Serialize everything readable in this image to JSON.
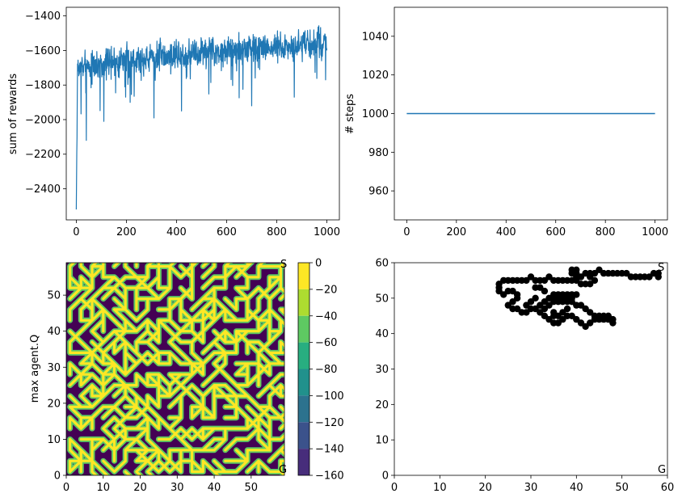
{
  "chart_data": [
    {
      "type": "line",
      "panel": "rewards",
      "ylabel": "sum of rewards",
      "xlabel": "",
      "xlim": [
        -40,
        1050
      ],
      "ylim": [
        -2580,
        -1350
      ],
      "xticks": [
        0,
        200,
        400,
        600,
        800,
        1000
      ],
      "yticks": [
        -2400,
        -2200,
        -2000,
        -1800,
        -1600,
        -1400
      ],
      "color": "#1f77b4",
      "series": [
        {
          "x_range": [
            0,
            1000
          ],
          "trend": [
            [
              0,
              -2520
            ],
            [
              5,
              -1700
            ],
            [
              50,
              -1690
            ],
            [
              150,
              -1660
            ],
            [
              300,
              -1640
            ],
            [
              500,
              -1610
            ],
            [
              700,
              -1590
            ],
            [
              900,
              -1570
            ],
            [
              1000,
              -1560
            ]
          ],
          "noise_amplitude": 60,
          "dips": [
            [
              0,
              -2520
            ],
            [
              3,
              -2100
            ],
            [
              40,
              -2120
            ],
            [
              110,
              -2010
            ],
            [
              310,
              -1990
            ],
            [
              420,
              -1950
            ],
            [
              700,
              -1920
            ],
            [
              870,
              -1870
            ],
            [
              995,
              -1770
            ]
          ]
        }
      ]
    },
    {
      "type": "line",
      "panel": "steps",
      "ylabel": "# steps",
      "xlabel": "",
      "xlim": [
        -50,
        1050
      ],
      "ylim": [
        945,
        1055
      ],
      "xticks": [
        0,
        200,
        400,
        600,
        800,
        1000
      ],
      "yticks": [
        960,
        980,
        1000,
        1020,
        1040
      ],
      "color": "#1f77b4",
      "series": [
        {
          "x": [
            0,
            1000
          ],
          "y": [
            1000,
            1000
          ]
        }
      ]
    },
    {
      "type": "heatmap",
      "panel": "q-contour",
      "ylabel": "max agent.Q",
      "xlabel": "",
      "xlim": [
        0,
        59
      ],
      "ylim": [
        0,
        59
      ],
      "xticks": [
        0,
        10,
        20,
        30,
        40,
        50
      ],
      "yticks": [
        0,
        10,
        20,
        30,
        40,
        50
      ],
      "colorbar": {
        "ticks": [
          0,
          -20,
          -40,
          -60,
          -80,
          -100,
          -120,
          -140,
          -160
        ],
        "levels": [
          "#fde725",
          "#addc30",
          "#5ec962",
          "#28ae80",
          "#21918c",
          "#2c728e",
          "#3b528b",
          "#472d7b",
          "#440154"
        ]
      },
      "corner_labels": {
        "top_right": "S",
        "bottom_right": "G"
      },
      "palette": {
        "wall": "#440154",
        "edge": "#5ec962",
        "path": "#fde725"
      }
    },
    {
      "type": "scatter",
      "panel": "trajectory",
      "xlabel": "",
      "ylabel": "",
      "xlim": [
        0,
        60
      ],
      "ylim": [
        0,
        60
      ],
      "xticks": [
        0,
        10,
        20,
        30,
        40,
        50,
        60
      ],
      "yticks": [
        0,
        10,
        20,
        30,
        40,
        50,
        60
      ],
      "color": "#000000",
      "corner_labels": {
        "top_right": "S",
        "bottom_right": "G"
      },
      "points": [
        [
          58,
          56
        ],
        [
          58,
          57
        ],
        [
          57,
          57
        ],
        [
          56,
          56
        ],
        [
          55,
          56
        ],
        [
          54,
          56
        ],
        [
          53,
          56
        ],
        [
          52,
          56
        ],
        [
          51,
          57
        ],
        [
          50,
          57
        ],
        [
          49,
          57
        ],
        [
          48,
          57
        ],
        [
          47,
          57
        ],
        [
          46,
          57
        ],
        [
          45,
          58
        ],
        [
          44,
          57
        ],
        [
          43,
          57
        ],
        [
          42,
          57
        ],
        [
          41,
          56
        ],
        [
          40,
          57
        ],
        [
          39,
          58
        ],
        [
          40,
          58
        ],
        [
          39,
          57
        ],
        [
          40,
          56
        ],
        [
          40,
          55
        ],
        [
          39,
          55
        ],
        [
          38,
          55
        ],
        [
          37,
          55
        ],
        [
          36,
          55
        ],
        [
          35,
          55
        ],
        [
          34,
          56
        ],
        [
          33,
          55
        ],
        [
          32,
          55
        ],
        [
          31,
          55
        ],
        [
          30,
          56
        ],
        [
          29,
          55
        ],
        [
          28,
          55
        ],
        [
          27,
          55
        ],
        [
          26,
          55
        ],
        [
          25,
          55
        ],
        [
          24,
          55
        ],
        [
          23,
          54
        ],
        [
          23,
          53
        ],
        [
          23,
          52
        ],
        [
          24,
          51
        ],
        [
          25,
          52
        ],
        [
          26,
          52
        ],
        [
          27,
          51
        ],
        [
          27,
          50
        ],
        [
          26,
          49
        ],
        [
          25,
          48
        ],
        [
          26,
          47
        ],
        [
          27,
          47
        ],
        [
          28,
          46
        ],
        [
          29,
          46
        ],
        [
          30,
          47
        ],
        [
          31,
          47
        ],
        [
          32,
          48
        ],
        [
          33,
          49
        ],
        [
          34,
          50
        ],
        [
          35,
          51
        ],
        [
          36,
          51
        ],
        [
          37,
          51
        ],
        [
          38,
          51
        ],
        [
          39,
          51
        ],
        [
          40,
          51
        ],
        [
          39,
          50
        ],
        [
          38,
          49
        ],
        [
          37,
          49
        ],
        [
          36,
          49
        ],
        [
          35,
          49
        ],
        [
          34,
          48
        ],
        [
          33,
          47
        ],
        [
          32,
          46
        ],
        [
          33,
          45
        ],
        [
          34,
          44
        ],
        [
          35,
          43
        ],
        [
          36,
          43
        ],
        [
          37,
          44
        ],
        [
          38,
          45
        ],
        [
          39,
          45
        ],
        [
          40,
          44
        ],
        [
          41,
          43
        ],
        [
          42,
          42
        ],
        [
          43,
          43
        ],
        [
          44,
          44
        ],
        [
          45,
          45
        ],
        [
          46,
          45
        ],
        [
          47,
          44
        ],
        [
          48,
          43
        ],
        [
          48,
          44
        ],
        [
          47,
          45
        ],
        [
          46,
          44
        ],
        [
          45,
          44
        ],
        [
          44,
          45
        ],
        [
          43,
          46
        ],
        [
          42,
          47
        ],
        [
          41,
          48
        ],
        [
          40,
          48
        ],
        [
          39,
          49
        ],
        [
          38,
          50
        ],
        [
          37,
          50
        ],
        [
          36,
          50
        ],
        [
          35,
          50
        ],
        [
          31,
          50
        ],
        [
          30,
          49
        ],
        [
          29,
          48
        ],
        [
          31,
          53
        ],
        [
          32,
          53
        ],
        [
          33,
          52
        ],
        [
          41,
          54
        ],
        [
          42,
          54
        ],
        [
          43,
          54
        ],
        [
          44,
          55
        ],
        [
          43,
          56
        ],
        [
          36,
          45
        ],
        [
          37,
          46
        ],
        [
          38,
          47
        ],
        [
          35,
          46
        ],
        [
          35,
          45
        ]
      ]
    }
  ]
}
